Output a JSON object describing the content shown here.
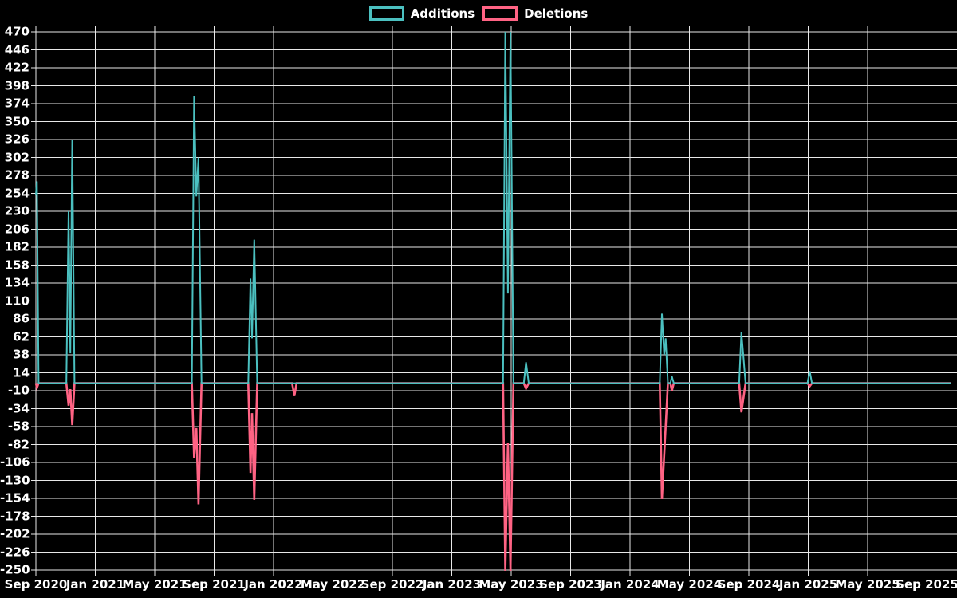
{
  "page": {
    "background": "#000000",
    "text_color": "#ffffff",
    "grid_color": "#e8e8e8"
  },
  "chart_data": {
    "type": "line",
    "title": "",
    "legend_position": "top-center",
    "grid": true,
    "x_axis": {
      "unit": "months since Sep 2020",
      "min_months": 0,
      "max_months": 62,
      "tick_every_months": 4,
      "tick_labels": [
        "Sep 2020",
        "Jan 2021",
        "May 2021",
        "Sep 2021",
        "Jan 2022",
        "May 2022",
        "Sep 2022",
        "Jan 2023",
        "May 2023",
        "Sep 2023",
        "Jan 2024",
        "May 2024",
        "Sep 2024",
        "Jan 2025",
        "May 2025",
        "Sep 2025"
      ]
    },
    "y_axis": {
      "min": -250,
      "max": 470,
      "tick_step": 24,
      "tick_labels": [
        "470",
        "446",
        "422",
        "398",
        "374",
        "350",
        "326",
        "302",
        "278",
        "254",
        "230",
        "206",
        "182",
        "158",
        "134",
        "110",
        "86",
        "62",
        "38",
        "14",
        "-10",
        "-34",
        "-58",
        "-82",
        "-106",
        "-130",
        "-154",
        "-178",
        "-202",
        "-226",
        "-250"
      ]
    },
    "series": [
      {
        "name": "Additions",
        "color": "#4bc0c0",
        "note": "values above 470 are clipped at chart top",
        "points": [
          [
            0,
            252
          ],
          [
            0.07,
            270
          ],
          [
            0.18,
            0
          ],
          [
            2.05,
            0
          ],
          [
            2.2,
            230
          ],
          [
            2.32,
            40
          ],
          [
            2.45,
            326
          ],
          [
            2.6,
            0
          ],
          [
            10.5,
            0
          ],
          [
            10.65,
            384
          ],
          [
            10.8,
            250
          ],
          [
            10.95,
            302
          ],
          [
            11.15,
            0
          ],
          [
            14.3,
            0
          ],
          [
            14.45,
            140
          ],
          [
            14.55,
            60
          ],
          [
            14.7,
            192
          ],
          [
            14.9,
            0
          ],
          [
            31.45,
            0
          ],
          [
            31.6,
            560
          ],
          [
            31.78,
            120
          ],
          [
            31.95,
            560
          ],
          [
            32.15,
            0
          ],
          [
            32.85,
            0
          ],
          [
            33.0,
            28
          ],
          [
            33.18,
            0
          ],
          [
            42.0,
            0
          ],
          [
            42.15,
            93
          ],
          [
            42.3,
            38
          ],
          [
            42.4,
            60
          ],
          [
            42.55,
            0
          ],
          [
            42.72,
            0
          ],
          [
            42.82,
            9
          ],
          [
            42.95,
            0
          ],
          [
            47.35,
            0
          ],
          [
            47.5,
            68
          ],
          [
            47.62,
            40
          ],
          [
            47.78,
            0
          ],
          [
            51.95,
            0
          ],
          [
            52.1,
            16
          ],
          [
            52.25,
            0
          ],
          [
            61.6,
            0
          ]
        ]
      },
      {
        "name": "Deletions",
        "color": "#ff6384",
        "note": "values below -250 are clipped at chart bottom",
        "points": [
          [
            0,
            0
          ],
          [
            0.07,
            -6
          ],
          [
            0.18,
            0
          ],
          [
            2.05,
            0
          ],
          [
            2.2,
            -30
          ],
          [
            2.32,
            -8
          ],
          [
            2.45,
            -56
          ],
          [
            2.6,
            0
          ],
          [
            10.5,
            0
          ],
          [
            10.65,
            -100
          ],
          [
            10.8,
            -60
          ],
          [
            10.95,
            -162
          ],
          [
            11.15,
            0
          ],
          [
            14.3,
            0
          ],
          [
            14.45,
            -120
          ],
          [
            14.55,
            -40
          ],
          [
            14.7,
            -156
          ],
          [
            14.9,
            0
          ],
          [
            17.25,
            0
          ],
          [
            17.4,
            -17
          ],
          [
            17.55,
            0
          ],
          [
            31.45,
            0
          ],
          [
            31.6,
            -300
          ],
          [
            31.78,
            -80
          ],
          [
            31.95,
            -300
          ],
          [
            32.15,
            0
          ],
          [
            32.85,
            0
          ],
          [
            33.0,
            -7
          ],
          [
            33.18,
            0
          ],
          [
            42.0,
            0
          ],
          [
            42.15,
            -155
          ],
          [
            42.55,
            0
          ],
          [
            42.72,
            0
          ],
          [
            42.82,
            -10
          ],
          [
            42.95,
            0
          ],
          [
            47.35,
            0
          ],
          [
            47.5,
            -39
          ],
          [
            47.78,
            0
          ],
          [
            51.95,
            0
          ],
          [
            52.1,
            -4
          ],
          [
            52.25,
            0
          ],
          [
            61.6,
            0
          ]
        ]
      }
    ]
  }
}
